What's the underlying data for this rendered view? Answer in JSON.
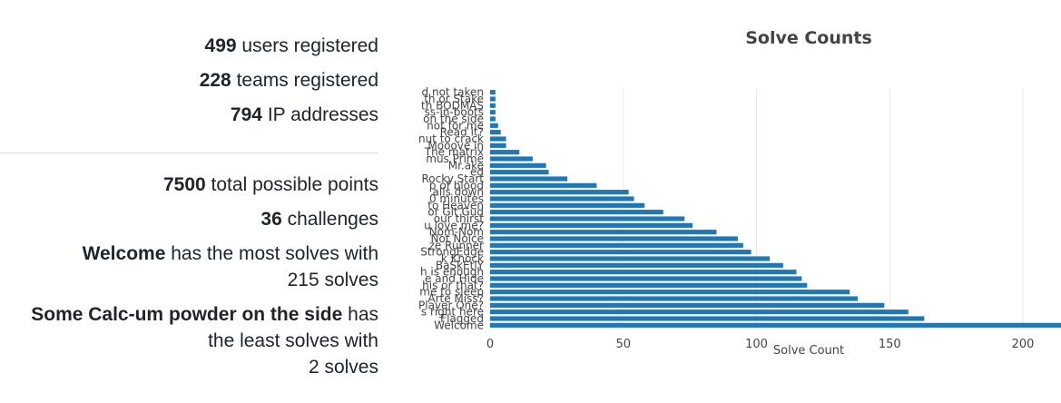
{
  "stats": {
    "users_count": "499",
    "users_text": "users registered",
    "teams_count": "228",
    "teams_text": "teams registered",
    "ips_count": "794",
    "ips_text": "IP addresses",
    "points_count": "7500",
    "points_text": "total possible points",
    "challenges_count": "36",
    "challenges_text": "challenges",
    "most_name": "Welcome",
    "most_text_1": "has the most solves with",
    "most_text_2": "215 solves",
    "least_name": "Some Calc-um powder on the side",
    "least_text_1": "has",
    "least_text_2": "the least solves with",
    "least_text_3": "2 solves"
  },
  "chart_data": {
    "type": "bar",
    "orientation": "horizontal",
    "title": "Solve Counts",
    "xlabel": "Solve Count",
    "ylabel": "",
    "xlim": [
      0,
      215
    ],
    "xticks": [
      0,
      50,
      100,
      150,
      200
    ],
    "grid": true,
    "bar_color": "#1f77b4",
    "categories": [
      "Welcome",
      "Flagged",
      "s right here",
      "Player One?",
      "Arte Miss?",
      "me to sleep",
      "his or that?",
      "e and Hide",
      "h is enough",
      "BaSkEtlY",
      "k Knock",
      "StrongEdge",
      "ze Runner",
      "Not Noice",
      "Nom-Nom",
      "u love me?",
      "our thirst",
      "or Git Gud",
      "to Heaven",
      "0 minutes",
      "alls down",
      "p of blood",
      "Rocky Start",
      "ed",
      "Mr.ake",
      "mus Prime",
      "The matrix",
      "Mooove in",
      "nut to crack",
      "Read it?",
      "not for me",
      "on the side",
      "ss-in-boots",
      "th BODMAS",
      "th or Stake",
      "d not taken"
    ],
    "values": [
      215,
      163,
      157,
      148,
      138,
      135,
      119,
      117,
      115,
      110,
      105,
      98,
      95,
      93,
      85,
      76,
      73,
      65,
      58,
      54,
      52,
      40,
      29,
      22,
      21,
      16,
      11,
      6,
      6,
      4,
      3,
      2,
      2,
      2,
      2,
      2
    ]
  }
}
